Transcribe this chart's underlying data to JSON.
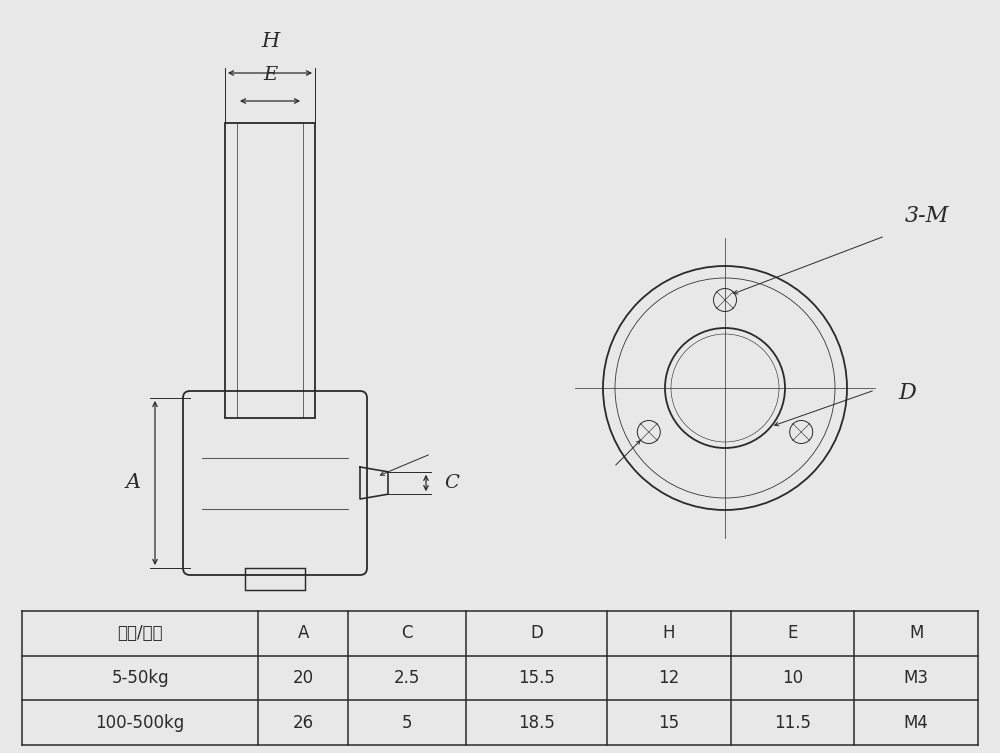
{
  "bg_color": "#e8e8e8",
  "draw_color": "#2a2a2a",
  "table_headers": [
    "量程/尺寸",
    "A",
    "C",
    "D",
    "H",
    "E",
    "M"
  ],
  "table_rows": [
    [
      "5-50kg",
      "20",
      "2.5",
      "15.5",
      "12",
      "10",
      "M3"
    ],
    [
      "100-500kg",
      "26",
      "5",
      "18.5",
      "15",
      "11.5",
      "M4"
    ]
  ]
}
